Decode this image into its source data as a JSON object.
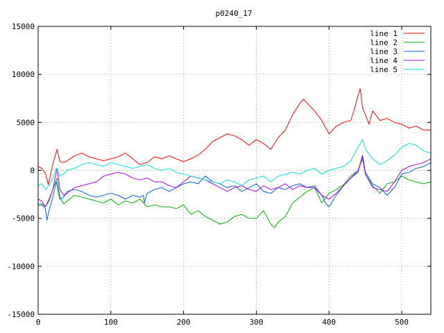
{
  "chart_data": {
    "type": "line",
    "title": "p0240_17",
    "xlabel": "",
    "ylabel": "",
    "xlim": [
      0,
      540
    ],
    "ylim": [
      -15000,
      15000
    ],
    "xticks": [
      0,
      100,
      200,
      300,
      400,
      500
    ],
    "yticks": [
      -15000,
      -10000,
      -5000,
      0,
      5000,
      10000,
      15000
    ],
    "grid": true,
    "legend_position": "top-right",
    "series": [
      {
        "name": "line 1",
        "color": "#ff0000",
        "x": [
          0,
          5,
          10,
          14,
          20,
          26,
          30,
          35,
          40,
          50,
          60,
          70,
          80,
          90,
          100,
          110,
          120,
          130,
          140,
          150,
          160,
          170,
          180,
          190,
          200,
          210,
          220,
          230,
          240,
          250,
          260,
          270,
          280,
          290,
          300,
          310,
          320,
          330,
          340,
          350,
          360,
          365,
          370,
          380,
          390,
          400,
          410,
          420,
          430,
          435,
          440,
          443,
          446,
          450,
          455,
          460,
          470,
          480,
          490,
          500,
          510,
          520,
          530,
          540
        ],
        "y": [
          400,
          200,
          -300,
          -1500,
          600,
          2200,
          900,
          800,
          1000,
          1500,
          1800,
          1400,
          1200,
          1000,
          1200,
          1400,
          1800,
          1200,
          600,
          800,
          1400,
          1200,
          1500,
          1200,
          900,
          1200,
          1600,
          2200,
          3000,
          3400,
          3800,
          3600,
          3200,
          2600,
          3200,
          2800,
          2200,
          3400,
          4200,
          5800,
          7000,
          7400,
          7000,
          6200,
          5200,
          3800,
          4600,
          5000,
          5200,
          6400,
          7800,
          8500,
          6500,
          5800,
          4800,
          6200,
          5200,
          5400,
          5000,
          4800,
          4400,
          4600,
          4200,
          4200
        ]
      },
      {
        "name": "line 2",
        "color": "#00b000",
        "x": [
          0,
          5,
          10,
          15,
          20,
          26,
          30,
          35,
          40,
          50,
          60,
          70,
          80,
          90,
          100,
          110,
          120,
          130,
          140,
          150,
          160,
          170,
          180,
          190,
          200,
          210,
          220,
          230,
          240,
          250,
          260,
          270,
          280,
          290,
          300,
          310,
          320,
          325,
          330,
          340,
          350,
          360,
          370,
          380,
          390,
          400,
          410,
          420,
          430,
          440,
          446,
          450,
          460,
          470,
          480,
          490,
          500,
          510,
          520,
          530,
          540
        ],
        "y": [
          -3500,
          -3500,
          -3800,
          -3200,
          -2000,
          -800,
          -2800,
          -3500,
          -3200,
          -2600,
          -2800,
          -3000,
          -3200,
          -3400,
          -3000,
          -3600,
          -3200,
          -3400,
          -3000,
          -3800,
          -3600,
          -3800,
          -3800,
          -4000,
          -3600,
          -4600,
          -4200,
          -4800,
          -5200,
          -5600,
          -5400,
          -4800,
          -4600,
          -5000,
          -5000,
          -4200,
          -5600,
          -6000,
          -5400,
          -4800,
          -3400,
          -2800,
          -2200,
          -1800,
          -3400,
          -2400,
          -2000,
          -1500,
          -600,
          0,
          1200,
          -400,
          -1600,
          -2400,
          -1400,
          -1200,
          -600,
          -1000,
          -1200,
          -1400,
          -1200
        ]
      },
      {
        "name": "line 3",
        "color": "#0060e0",
        "x": [
          0,
          5,
          10,
          12,
          15,
          20,
          25,
          28,
          30,
          35,
          40,
          50,
          60,
          70,
          80,
          90,
          100,
          110,
          120,
          130,
          140,
          145,
          146,
          150,
          160,
          170,
          180,
          190,
          200,
          210,
          220,
          230,
          240,
          250,
          260,
          270,
          280,
          290,
          300,
          310,
          320,
          330,
          340,
          350,
          360,
          370,
          380,
          390,
          395,
          400,
          410,
          420,
          430,
          440,
          446,
          450,
          460,
          470,
          480,
          490,
          500,
          510,
          520,
          530,
          540
        ],
        "y": [
          -3700,
          -3600,
          -4000,
          -5200,
          -4200,
          -2800,
          -1200,
          -2400,
          -3000,
          -2800,
          -2200,
          -2000,
          -2200,
          -2600,
          -2800,
          -2600,
          -2400,
          -2600,
          -3000,
          -2600,
          -2800,
          -2600,
          -3400,
          -2400,
          -2000,
          -1800,
          -2200,
          -1800,
          -1400,
          -1200,
          -1400,
          -600,
          -1200,
          -1400,
          -1800,
          -1600,
          -2200,
          -1800,
          -1400,
          -2200,
          -2400,
          -1800,
          -2000,
          -1600,
          -1400,
          -1800,
          -1600,
          -2600,
          -3400,
          -3800,
          -2600,
          -1600,
          -800,
          -200,
          1600,
          -200,
          -1400,
          -1800,
          -2600,
          -1800,
          -400,
          -200,
          200,
          400,
          800
        ]
      },
      {
        "name": "line 4",
        "color": "#b000ff",
        "x": [
          0,
          5,
          10,
          15,
          20,
          26,
          30,
          35,
          40,
          50,
          60,
          70,
          80,
          90,
          100,
          110,
          120,
          130,
          140,
          150,
          160,
          170,
          180,
          190,
          200,
          210,
          220,
          230,
          240,
          250,
          260,
          270,
          280,
          290,
          300,
          310,
          320,
          330,
          340,
          350,
          360,
          370,
          380,
          390,
          400,
          410,
          420,
          430,
          440,
          446,
          450,
          460,
          470,
          480,
          490,
          500,
          510,
          520,
          530,
          540
        ],
        "y": [
          -3000,
          -3200,
          -3800,
          -3000,
          -2000,
          200,
          -2000,
          -2600,
          -2400,
          -1800,
          -1600,
          -1400,
          -1200,
          -600,
          -400,
          -200,
          -400,
          -800,
          -1000,
          -800,
          -1200,
          -1200,
          -1600,
          -1800,
          -1200,
          -600,
          -800,
          -1000,
          -1400,
          -1800,
          -2200,
          -1800,
          -1600,
          -2000,
          -2200,
          -1600,
          -2000,
          -1800,
          -1400,
          -2000,
          -1600,
          -1800,
          -1800,
          -2600,
          -3000,
          -2400,
          -1600,
          -800,
          0,
          1400,
          -400,
          -1800,
          -2000,
          -2200,
          -1200,
          0,
          400,
          600,
          800,
          1200
        ]
      },
      {
        "name": "line 5",
        "color": "#00e0e0",
        "x": [
          0,
          5,
          10,
          15,
          20,
          25,
          30,
          35,
          40,
          50,
          60,
          70,
          80,
          90,
          100,
          110,
          120,
          130,
          140,
          150,
          160,
          170,
          180,
          190,
          200,
          210,
          220,
          230,
          240,
          250,
          260,
          270,
          280,
          290,
          300,
          310,
          320,
          330,
          340,
          350,
          360,
          370,
          380,
          390,
          400,
          410,
          420,
          430,
          440,
          446,
          450,
          460,
          470,
          480,
          490,
          500,
          510,
          520,
          530,
          540
        ],
        "y": [
          -1600,
          -1400,
          -2000,
          -1600,
          -800,
          200,
          -600,
          -400,
          0,
          200,
          600,
          800,
          600,
          400,
          800,
          600,
          400,
          200,
          400,
          600,
          200,
          0,
          200,
          -200,
          -400,
          -600,
          -800,
          -1000,
          -1200,
          -1400,
          -1000,
          -1200,
          -1600,
          -1000,
          -800,
          -600,
          -1200,
          -600,
          -400,
          -200,
          -400,
          0,
          200,
          -400,
          0,
          200,
          400,
          1000,
          2400,
          3200,
          2200,
          1200,
          600,
          1000,
          1600,
          2400,
          2800,
          2600,
          2000,
          1800
        ]
      }
    ]
  }
}
